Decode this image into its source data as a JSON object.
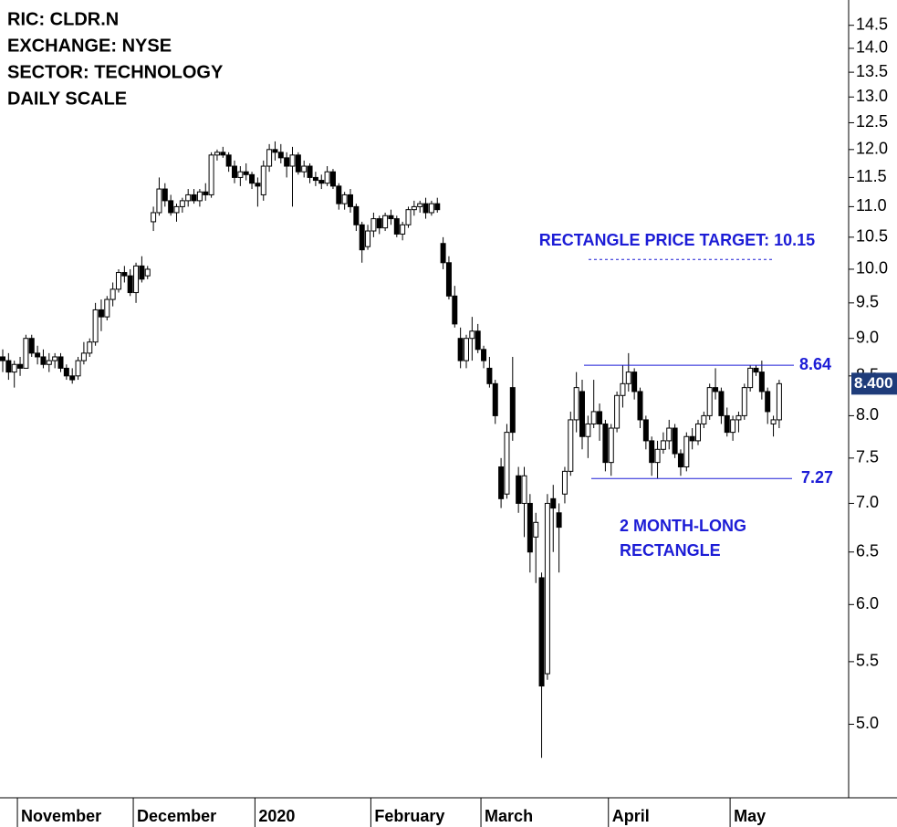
{
  "chart_data": {
    "type": "candlestick",
    "info_lines": [
      "RIC: CLDR.N",
      "EXCHANGE: NYSE",
      "SECTOR: TECHNOLOGY",
      "DAILY SCALE"
    ],
    "log_scale": true,
    "ylim": [
      4.47,
      15.07
    ],
    "yticks": [
      {
        "value": 5,
        "label": "5.0"
      },
      5.5,
      {
        "value": 6,
        "label": "6.0"
      },
      6.5,
      {
        "value": 7,
        "label": "7.0"
      },
      7.5,
      {
        "value": 8,
        "label": "8.0"
      },
      8.5,
      {
        "value": 9,
        "label": "9.0"
      },
      9.5,
      {
        "value": 10,
        "label": "10.0"
      },
      10.5,
      {
        "value": 11,
        "label": "11.0"
      },
      11.5,
      {
        "value": 12,
        "label": "12.0"
      },
      12.5,
      {
        "value": 13,
        "label": "13.0"
      },
      13.5,
      {
        "value": 14,
        "label": "14.0"
      },
      14.5
    ],
    "categories": [
      null,
      null,
      null,
      "November",
      null,
      null,
      null,
      null,
      null,
      null,
      null,
      null,
      null,
      null,
      null,
      null,
      null,
      null,
      null,
      null,
      null,
      null,
      null,
      "December",
      null,
      null,
      null,
      null,
      null,
      null,
      null,
      null,
      null,
      null,
      null,
      null,
      null,
      null,
      null,
      null,
      null,
      null,
      null,
      null,
      "2020",
      null,
      null,
      null,
      null,
      null,
      null,
      null,
      null,
      null,
      null,
      null,
      null,
      null,
      null,
      null,
      null,
      null,
      null,
      null,
      "February",
      null,
      null,
      null,
      null,
      null,
      null,
      null,
      null,
      null,
      null,
      null,
      null,
      null,
      null,
      null,
      null,
      null,
      null,
      "March",
      null,
      null,
      null,
      null,
      null,
      null,
      null,
      null,
      null,
      null,
      null,
      null,
      null,
      null,
      null,
      null,
      null,
      null,
      null,
      null,
      null,
      "April",
      null,
      null,
      null,
      null,
      null,
      null,
      null,
      null,
      null,
      null,
      null,
      null,
      null,
      null,
      null,
      null,
      null,
      null,
      null,
      null,
      "May",
      null,
      null,
      null,
      null,
      null,
      null,
      null,
      null
    ],
    "ohlc": [
      [
        8.75,
        8.85,
        8.55,
        8.7
      ],
      [
        8.7,
        8.8,
        8.45,
        8.55
      ],
      [
        8.55,
        8.7,
        8.35,
        8.65
      ],
      [
        8.65,
        8.75,
        8.5,
        8.6
      ],
      [
        8.6,
        9.05,
        8.6,
        9.0
      ],
      [
        9.0,
        9.05,
        8.75,
        8.8
      ],
      [
        8.8,
        8.9,
        8.65,
        8.75
      ],
      [
        8.75,
        8.85,
        8.6,
        8.65
      ],
      [
        8.65,
        8.8,
        8.55,
        8.7
      ],
      [
        8.7,
        8.8,
        8.6,
        8.75
      ],
      [
        8.75,
        8.8,
        8.55,
        8.6
      ],
      [
        8.6,
        8.65,
        8.45,
        8.5
      ],
      [
        8.5,
        8.6,
        8.4,
        8.45
      ],
      [
        8.5,
        8.75,
        8.45,
        8.7
      ],
      [
        8.7,
        8.95,
        8.65,
        8.8
      ],
      [
        8.8,
        9.0,
        8.75,
        8.95
      ],
      [
        8.95,
        9.5,
        8.9,
        9.4
      ],
      [
        9.4,
        9.55,
        9.1,
        9.3
      ],
      [
        9.3,
        9.6,
        9.25,
        9.55
      ],
      [
        9.55,
        9.8,
        9.45,
        9.7
      ],
      [
        9.7,
        10.0,
        9.65,
        9.95
      ],
      [
        9.95,
        10.05,
        9.8,
        9.9
      ],
      [
        9.9,
        10.0,
        9.6,
        9.65
      ],
      [
        9.65,
        10.1,
        9.5,
        10.05
      ],
      [
        10.05,
        10.2,
        9.8,
        9.85
      ],
      [
        9.9,
        10.05,
        9.85,
        10.0
      ],
      [
        10.75,
        11.0,
        10.6,
        10.9
      ],
      [
        10.9,
        11.5,
        10.85,
        11.3
      ],
      [
        11.3,
        11.4,
        11.0,
        11.1
      ],
      [
        11.1,
        11.2,
        10.85,
        10.9
      ],
      [
        10.9,
        11.05,
        10.75,
        11.0
      ],
      [
        11.0,
        11.15,
        10.9,
        11.1
      ],
      [
        11.1,
        11.3,
        11.0,
        11.2
      ],
      [
        11.2,
        11.3,
        11.05,
        11.1
      ],
      [
        11.1,
        11.3,
        11.0,
        11.25
      ],
      [
        11.25,
        11.4,
        11.1,
        11.2
      ],
      [
        11.2,
        11.95,
        11.15,
        11.9
      ],
      [
        11.9,
        12.0,
        11.8,
        11.95
      ],
      [
        11.95,
        12.05,
        11.85,
        11.9
      ],
      [
        11.9,
        11.95,
        11.6,
        11.7
      ],
      [
        11.7,
        11.8,
        11.4,
        11.5
      ],
      [
        11.5,
        11.7,
        11.35,
        11.6
      ],
      [
        11.6,
        11.75,
        11.45,
        11.55
      ],
      [
        11.55,
        11.6,
        11.3,
        11.4
      ],
      [
        11.4,
        11.5,
        11.0,
        11.35
      ],
      [
        11.2,
        11.8,
        11.1,
        11.7
      ],
      [
        11.7,
        12.1,
        11.6,
        12.0
      ],
      [
        12.0,
        12.15,
        11.8,
        11.95
      ],
      [
        11.95,
        12.1,
        11.75,
        11.85
      ],
      [
        11.85,
        11.95,
        11.5,
        11.7
      ],
      [
        11.7,
        12.05,
        11.0,
        11.9
      ],
      [
        11.9,
        11.95,
        11.55,
        11.6
      ],
      [
        11.6,
        11.8,
        11.5,
        11.7
      ],
      [
        11.7,
        11.75,
        11.4,
        11.5
      ],
      [
        11.5,
        11.6,
        11.35,
        11.45
      ],
      [
        11.45,
        11.55,
        11.3,
        11.4
      ],
      [
        11.4,
        11.7,
        11.35,
        11.6
      ],
      [
        11.6,
        11.65,
        11.3,
        11.35
      ],
      [
        11.35,
        11.4,
        10.95,
        11.05
      ],
      [
        11.05,
        11.25,
        10.95,
        11.2
      ],
      [
        11.2,
        11.3,
        10.9,
        11.0
      ],
      [
        11.0,
        11.05,
        10.6,
        10.7
      ],
      [
        10.7,
        10.75,
        10.1,
        10.3
      ],
      [
        10.35,
        10.7,
        10.3,
        10.6
      ],
      [
        10.6,
        10.9,
        10.5,
        10.8
      ],
      [
        10.8,
        10.85,
        10.55,
        10.65
      ],
      [
        10.65,
        10.9,
        10.6,
        10.85
      ],
      [
        10.85,
        10.95,
        10.7,
        10.8
      ],
      [
        10.8,
        10.85,
        10.5,
        10.55
      ],
      [
        10.55,
        10.75,
        10.45,
        10.7
      ],
      [
        10.7,
        11.0,
        10.65,
        10.95
      ],
      [
        10.95,
        11.1,
        10.85,
        11.0
      ],
      [
        11.0,
        11.1,
        10.9,
        11.05
      ],
      [
        11.05,
        11.15,
        10.8,
        10.9
      ],
      [
        10.9,
        11.1,
        10.85,
        11.05
      ],
      [
        11.05,
        11.15,
        10.9,
        10.95
      ],
      [
        10.4,
        10.5,
        10.0,
        10.1
      ],
      [
        10.1,
        10.2,
        9.55,
        9.6
      ],
      [
        9.6,
        9.75,
        9.15,
        9.2
      ],
      [
        9.0,
        9.15,
        8.6,
        8.7
      ],
      [
        8.7,
        9.05,
        8.6,
        9.0
      ],
      [
        9.0,
        9.3,
        8.7,
        9.1
      ],
      [
        9.1,
        9.2,
        8.8,
        8.85
      ],
      [
        8.85,
        8.9,
        8.6,
        8.7
      ],
      [
        8.6,
        8.75,
        8.35,
        8.4
      ],
      [
        8.4,
        8.45,
        7.9,
        8.0
      ],
      [
        7.4,
        7.5,
        6.95,
        7.05
      ],
      [
        7.1,
        7.9,
        7.05,
        7.8
      ],
      [
        8.35,
        8.75,
        7.7,
        7.8
      ],
      [
        7.3,
        7.4,
        6.9,
        7.0
      ],
      [
        7.0,
        7.4,
        6.65,
        7.3
      ],
      [
        7.0,
        7.1,
        6.3,
        6.5
      ],
      [
        6.65,
        6.9,
        6.2,
        6.8
      ],
      [
        6.25,
        6.3,
        4.75,
        5.3
      ],
      [
        5.4,
        7.1,
        5.35,
        7.0
      ],
      [
        7.05,
        7.2,
        6.5,
        6.95
      ],
      [
        6.9,
        7.0,
        6.3,
        6.75
      ],
      [
        7.1,
        7.4,
        7.0,
        7.35
      ],
      [
        7.35,
        8.05,
        7.3,
        7.95
      ],
      [
        7.95,
        8.55,
        7.8,
        8.35
      ],
      [
        8.3,
        8.45,
        7.6,
        7.75
      ],
      [
        7.75,
        8.0,
        7.5,
        7.9
      ],
      [
        7.9,
        8.45,
        7.85,
        8.05
      ],
      [
        8.05,
        8.15,
        7.7,
        7.9
      ],
      [
        7.9,
        7.95,
        7.35,
        7.45
      ],
      [
        7.45,
        7.9,
        7.3,
        7.85
      ],
      [
        7.85,
        8.3,
        7.8,
        8.25
      ],
      [
        8.25,
        8.64,
        8.1,
        8.4
      ],
      [
        8.4,
        8.8,
        8.3,
        8.55
      ],
      [
        8.55,
        8.6,
        8.2,
        8.3
      ],
      [
        8.3,
        8.35,
        7.85,
        7.95
      ],
      [
        7.95,
        8.0,
        7.6,
        7.7
      ],
      [
        7.7,
        7.75,
        7.3,
        7.45
      ],
      [
        7.45,
        7.7,
        7.27,
        7.6
      ],
      [
        7.6,
        7.8,
        7.55,
        7.7
      ],
      [
        7.7,
        7.95,
        7.6,
        7.85
      ],
      [
        7.85,
        7.9,
        7.5,
        7.55
      ],
      [
        7.55,
        7.6,
        7.3,
        7.4
      ],
      [
        7.4,
        7.8,
        7.35,
        7.75
      ],
      [
        7.75,
        7.85,
        7.6,
        7.7
      ],
      [
        7.7,
        7.95,
        7.65,
        7.9
      ],
      [
        7.9,
        8.05,
        7.85,
        8.0
      ],
      [
        8.0,
        8.4,
        7.95,
        8.35
      ],
      [
        8.35,
        8.6,
        8.2,
        8.3
      ],
      [
        8.3,
        8.35,
        7.9,
        8.0
      ],
      [
        8.0,
        8.1,
        7.75,
        7.8
      ],
      [
        7.8,
        8.0,
        7.7,
        7.95
      ],
      [
        7.95,
        8.05,
        7.8,
        8.0
      ],
      [
        8.0,
        8.4,
        7.95,
        8.35
      ],
      [
        8.35,
        8.64,
        8.3,
        8.6
      ],
      [
        8.6,
        8.64,
        8.5,
        8.55
      ],
      [
        8.55,
        8.7,
        8.2,
        8.3
      ],
      [
        8.3,
        8.35,
        7.9,
        8.05
      ],
      [
        7.9,
        8.0,
        7.75,
        7.95
      ],
      [
        7.95,
        8.45,
        7.85,
        8.4
      ]
    ],
    "last_price": {
      "value": 8.4,
      "label": "8.400"
    },
    "resistance": 8.64,
    "support": 7.27,
    "target": {
      "value": 10.15,
      "label": "RECTANGLE PRICE TARGET: 10.15"
    },
    "pattern_note": [
      "2 MONTH-LONG",
      "RECTANGLE"
    ],
    "annotation_color": "#1c1cd6"
  }
}
